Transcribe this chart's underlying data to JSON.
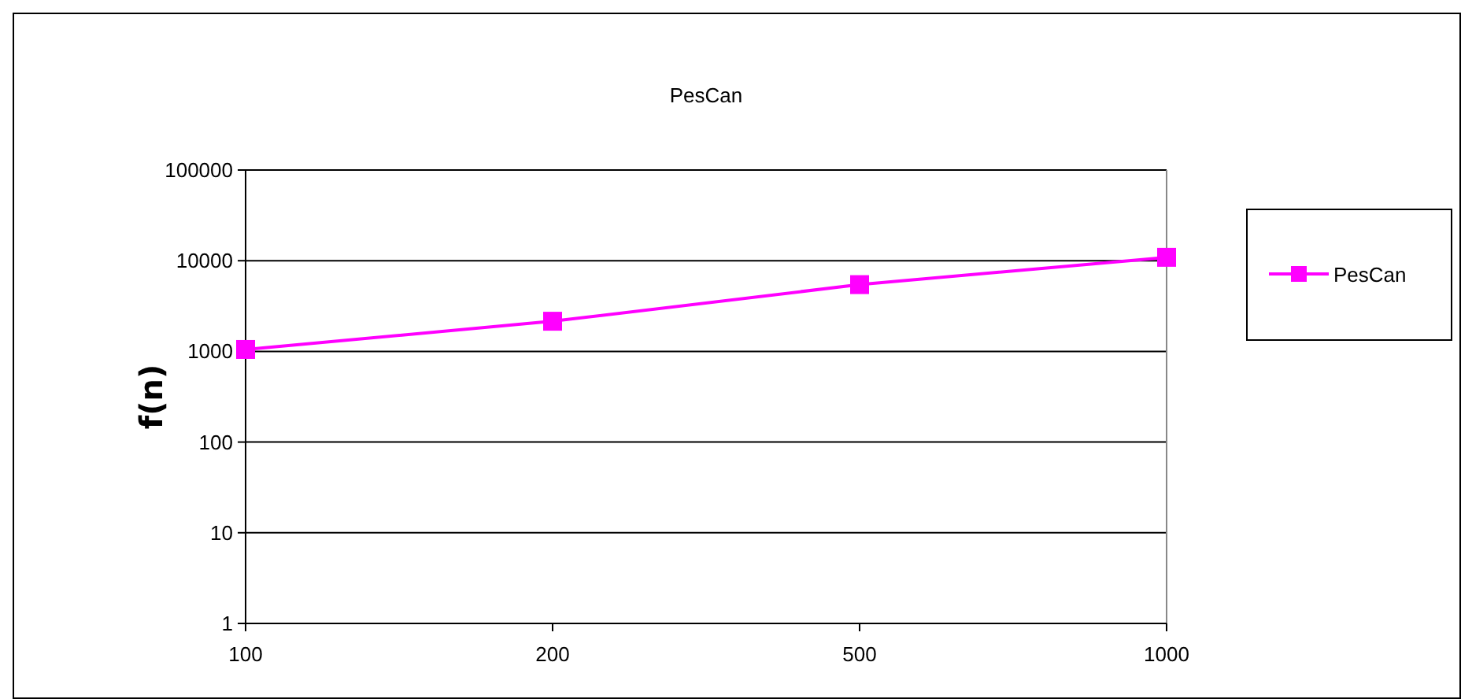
{
  "chart_data": {
    "type": "line",
    "title": "PesCan",
    "ylabel": "f(n)",
    "categories": [
      "100",
      "200",
      "500",
      "1000"
    ],
    "series": [
      {
        "name": "PesCan",
        "color": "#ff00ff",
        "values": [
          1050,
          2150,
          5450,
          10900
        ]
      }
    ],
    "log": "y",
    "ylim": [
      1,
      100000
    ],
    "yticks": [
      1,
      10,
      100,
      1000,
      10000,
      100000
    ],
    "grid": "y",
    "legend": "right",
    "marker": "square",
    "line_style": "solid"
  }
}
